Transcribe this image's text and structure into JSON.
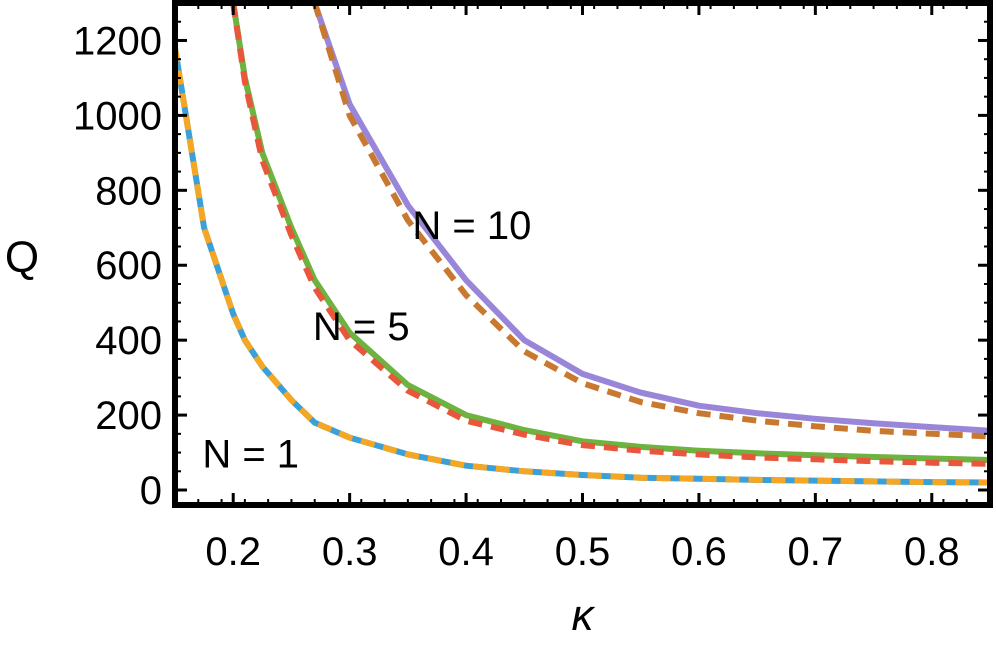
{
  "chart_data": {
    "type": "line",
    "title": "",
    "xlabel": "κ",
    "ylabel": "Q",
    "xlim": [
      0.15,
      0.85
    ],
    "ylim": [
      -40,
      1300
    ],
    "x_ticks": [
      "0.2",
      "0.3",
      "0.4",
      "0.5",
      "0.6",
      "0.7",
      "0.8"
    ],
    "y_ticks": [
      "0",
      "200",
      "400",
      "600",
      "800",
      "1000",
      "1200"
    ],
    "grid": false,
    "x": [
      0.15,
      0.175,
      0.2,
      0.21,
      0.225,
      0.25,
      0.27,
      0.3,
      0.35,
      0.4,
      0.45,
      0.5,
      0.55,
      0.6,
      0.65,
      0.7,
      0.75,
      0.8,
      0.85
    ],
    "series": [
      {
        "color": "#3aa0d8",
        "style": "solid",
        "values": [
          1180,
          700,
          470,
          400,
          330,
          240,
          180,
          140,
          95,
          65,
          50,
          40,
          33,
          30,
          27,
          25,
          23,
          21,
          20
        ]
      },
      {
        "color": "#f5a623",
        "style": "dashed",
        "values": [
          1180,
          700,
          470,
          400,
          330,
          240,
          180,
          140,
          95,
          65,
          50,
          40,
          33,
          30,
          27,
          25,
          23,
          21,
          20
        ]
      },
      {
        "color": "#6db33f",
        "style": "solid",
        "values": [
          null,
          null,
          1300,
          1100,
          900,
          700,
          560,
          420,
          280,
          200,
          160,
          130,
          115,
          105,
          98,
          93,
          88,
          84,
          80
        ]
      },
      {
        "color": "#e8573c",
        "style": "dashed",
        "values": [
          null,
          null,
          1300,
          1090,
          880,
          680,
          540,
          400,
          265,
          185,
          148,
          120,
          105,
          95,
          87,
          82,
          77,
          73,
          70
        ]
      },
      {
        "color": "#9a86d8",
        "style": "solid",
        "values": [
          null,
          null,
          null,
          null,
          null,
          null,
          1300,
          1030,
          760,
          560,
          400,
          310,
          260,
          225,
          205,
          190,
          178,
          168,
          158
        ]
      },
      {
        "color": "#c9782f",
        "style": "dashed",
        "values": [
          null,
          null,
          null,
          null,
          null,
          null,
          1300,
          1000,
          720,
          520,
          370,
          285,
          235,
          205,
          185,
          170,
          158,
          150,
          143
        ]
      }
    ],
    "annotations": [
      {
        "text": "N = 1",
        "x": 0.215,
        "y": 60
      },
      {
        "text": "N = 5",
        "x": 0.31,
        "y": 400
      },
      {
        "text": "N = 10",
        "x": 0.405,
        "y": 670
      }
    ]
  }
}
